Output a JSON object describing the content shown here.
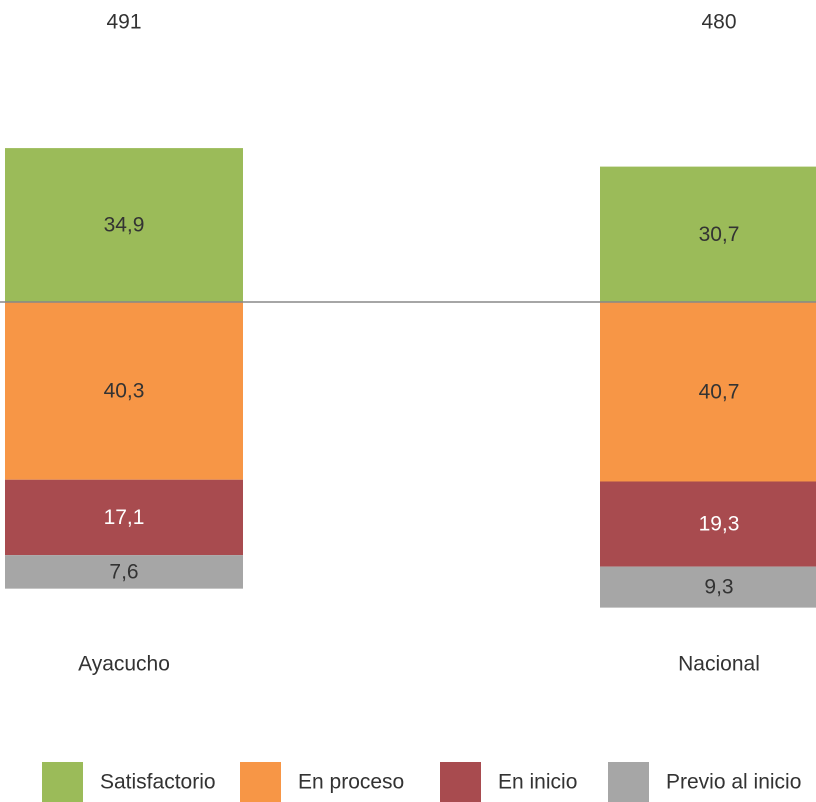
{
  "chart_data": {
    "type": "bar",
    "diverging": true,
    "categories": [
      "Ayacucho",
      "Nacional"
    ],
    "scores": [
      491,
      480
    ],
    "series": [
      {
        "name": "Satisfactorio",
        "color": "#9bbb59",
        "values": [
          34.9,
          30.7
        ],
        "value_labels": [
          "34,9",
          "30,7"
        ]
      },
      {
        "name": "En proceso",
        "color": "#f79646",
        "values": [
          40.3,
          40.7
        ],
        "value_labels": [
          "40,3",
          "40,7"
        ]
      },
      {
        "name": "En inicio",
        "color": "#a84b4f",
        "values": [
          17.1,
          19.3
        ],
        "value_labels": [
          "17,1",
          "19,3"
        ]
      },
      {
        "name": "Previo al inicio",
        "color": "#a6a6a6",
        "values": [
          7.6,
          9.3
        ],
        "value_labels": [
          "7,6",
          "9,3"
        ]
      }
    ]
  }
}
